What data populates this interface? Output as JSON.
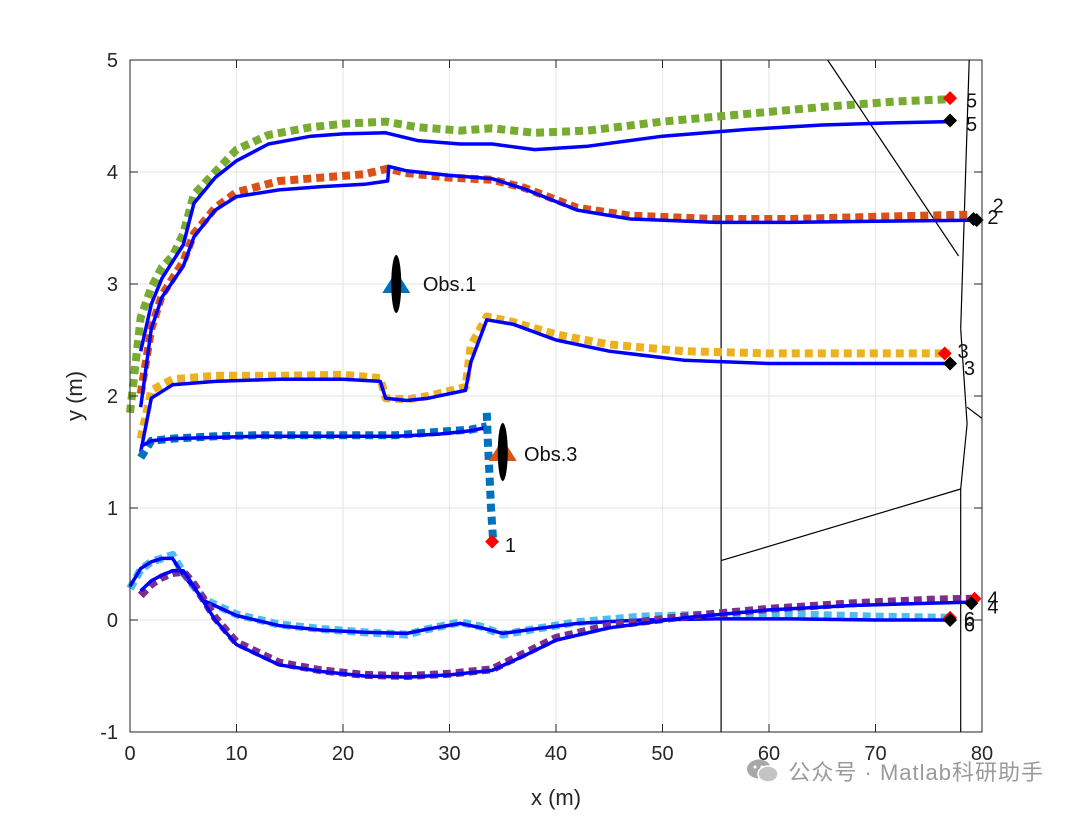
{
  "chart_data": {
    "type": "line",
    "xlabel": "x (m)",
    "ylabel": "y (m)",
    "xlim": [
      0,
      80
    ],
    "ylim": [
      -1,
      5
    ],
    "xticks": [
      0,
      10,
      20,
      30,
      40,
      50,
      60,
      70,
      80
    ],
    "yticks": [
      -1,
      0,
      1,
      2,
      3,
      4,
      5
    ],
    "grid": true,
    "colors": {
      "green": "#77ac30",
      "orange": "#d95319",
      "yellow": "#edb120",
      "blue": "#0072bd",
      "lightblue": "#4dbeee",
      "purple": "#7e2f8e",
      "solid": "#0000ff",
      "red": "#ff0000",
      "black": "#000000"
    },
    "series": [
      {
        "color": "green",
        "style": "dotted",
        "x": [
          0,
          1,
          2,
          3,
          4,
          5,
          6,
          8,
          10,
          13,
          17,
          20,
          24,
          27,
          31,
          34,
          38,
          43,
          50,
          58,
          65,
          72,
          77
        ],
        "y": [
          1.85,
          2.7,
          2.97,
          3.15,
          3.25,
          3.45,
          3.8,
          4.0,
          4.2,
          4.33,
          4.4,
          4.43,
          4.45,
          4.4,
          4.37,
          4.39,
          4.35,
          4.37,
          4.45,
          4.52,
          4.58,
          4.63,
          4.65
        ]
      },
      {
        "color": "solid",
        "style": "solid",
        "x": [
          1,
          2,
          3,
          4,
          5,
          6,
          8,
          10,
          13,
          17,
          20,
          24,
          27,
          31,
          34,
          38,
          43,
          50,
          58,
          65,
          72,
          77
        ],
        "y": [
          2.4,
          2.82,
          3.05,
          3.2,
          3.35,
          3.72,
          3.95,
          4.1,
          4.25,
          4.32,
          4.34,
          4.35,
          4.28,
          4.25,
          4.25,
          4.2,
          4.23,
          4.32,
          4.38,
          4.42,
          4.44,
          4.45
        ]
      },
      {
        "color": "orange",
        "style": "dotted",
        "x": [
          1,
          2,
          3,
          4,
          5,
          6,
          8,
          10,
          14,
          18,
          22,
          24.2,
          26,
          30,
          34,
          37,
          42,
          47,
          55,
          62,
          70,
          79
        ],
        "y": [
          2.02,
          2.6,
          2.9,
          3.05,
          3.2,
          3.45,
          3.68,
          3.82,
          3.92,
          3.95,
          3.98,
          4.03,
          3.99,
          3.95,
          3.93,
          3.86,
          3.68,
          3.61,
          3.58,
          3.58,
          3.6,
          3.62
        ]
      },
      {
        "color": "solid",
        "style": "solid",
        "x": [
          1,
          2,
          3,
          4,
          5,
          6,
          8,
          10,
          14,
          18,
          22,
          24.2,
          24.3,
          26,
          30,
          34,
          37,
          42,
          47,
          55,
          62,
          70,
          79
        ],
        "y": [
          1.9,
          2.6,
          2.88,
          3.02,
          3.16,
          3.42,
          3.66,
          3.78,
          3.84,
          3.87,
          3.89,
          3.92,
          4.05,
          4.01,
          3.97,
          3.94,
          3.85,
          3.66,
          3.58,
          3.55,
          3.55,
          3.56,
          3.57
        ]
      },
      {
        "color": "yellow",
        "style": "dotted",
        "x": [
          1,
          2,
          4,
          8,
          14,
          20,
          23.5,
          24,
          26,
          28,
          31.5,
          32,
          33.5,
          36,
          40,
          45,
          52,
          60,
          68,
          77
        ],
        "y": [
          1.62,
          2.05,
          2.15,
          2.18,
          2.18,
          2.19,
          2.16,
          1.98,
          1.97,
          2.0,
          2.08,
          2.45,
          2.71,
          2.66,
          2.55,
          2.46,
          2.4,
          2.38,
          2.38,
          2.38
        ]
      },
      {
        "color": "solid",
        "style": "solid",
        "x": [
          1,
          2,
          4,
          8,
          14,
          20,
          23.5,
          24,
          26,
          28,
          31.5,
          32,
          33.5,
          36,
          40,
          45,
          52,
          60,
          68,
          77
        ],
        "y": [
          1.5,
          1.98,
          2.1,
          2.13,
          2.15,
          2.15,
          2.13,
          1.98,
          1.96,
          1.98,
          2.05,
          2.3,
          2.68,
          2.64,
          2.5,
          2.4,
          2.32,
          2.29,
          2.29,
          2.29
        ]
      },
      {
        "color": "blue",
        "style": "dotted",
        "x": [
          1,
          2,
          4,
          8,
          12,
          16,
          20,
          25,
          29,
          32,
          33.5
        ],
        "y": [
          1.45,
          1.6,
          1.62,
          1.64,
          1.65,
          1.65,
          1.65,
          1.65,
          1.68,
          1.7,
          1.73
        ]
      },
      {
        "color": "solid",
        "style": "solid",
        "x": [
          1,
          2,
          4,
          8,
          12,
          16,
          20,
          25,
          29,
          32,
          33.5
        ],
        "y": [
          1.55,
          1.6,
          1.62,
          1.63,
          1.64,
          1.64,
          1.64,
          1.64,
          1.66,
          1.69,
          1.72
        ]
      },
      {
        "color": "blue",
        "style": "dotted",
        "x": [
          33.5,
          33.6,
          33.7,
          33.8,
          33.9,
          34,
          34.1
        ],
        "y": [
          1.85,
          1.6,
          1.4,
          1.2,
          1.0,
          0.85,
          0.7
        ]
      },
      {
        "color": "lightblue",
        "style": "dotted",
        "x": [
          0,
          1,
          2,
          3,
          4,
          5,
          7,
          10,
          14,
          18,
          22,
          26,
          28,
          31,
          33,
          35,
          38,
          42,
          48,
          55,
          62,
          70,
          77
        ],
        "y": [
          0.28,
          0.45,
          0.52,
          0.55,
          0.58,
          0.42,
          0.18,
          0.05,
          -0.04,
          -0.08,
          -0.11,
          -0.13,
          -0.08,
          -0.02,
          -0.06,
          -0.13,
          -0.08,
          -0.02,
          0.03,
          0.05,
          0.05,
          0.03,
          0.02
        ]
      },
      {
        "color": "solid",
        "style": "solid",
        "x": [
          0,
          1,
          2,
          3,
          4,
          5,
          7,
          10,
          14,
          18,
          22,
          26,
          28,
          31,
          33,
          35,
          38,
          42,
          48,
          55,
          62,
          70,
          77
        ],
        "y": [
          0.3,
          0.46,
          0.52,
          0.55,
          0.55,
          0.4,
          0.17,
          0.04,
          -0.05,
          -0.09,
          -0.11,
          -0.12,
          -0.08,
          -0.03,
          -0.07,
          -0.12,
          -0.08,
          -0.03,
          0.0,
          0.01,
          0.01,
          0.0,
          0.0
        ]
      },
      {
        "color": "purple",
        "style": "dotted",
        "x": [
          1,
          2,
          3,
          4,
          5,
          6,
          8,
          10,
          14,
          18,
          22,
          26,
          30,
          34,
          37,
          40,
          45,
          52,
          60,
          68,
          75,
          79
        ],
        "y": [
          0.22,
          0.32,
          0.38,
          0.42,
          0.43,
          0.32,
          0.02,
          -0.2,
          -0.38,
          -0.45,
          -0.49,
          -0.5,
          -0.48,
          -0.44,
          -0.3,
          -0.16,
          -0.05,
          0.03,
          0.1,
          0.15,
          0.18,
          0.19
        ]
      },
      {
        "color": "solid",
        "style": "solid",
        "x": [
          1,
          2,
          3,
          4,
          5,
          6,
          8,
          10,
          14,
          18,
          22,
          26,
          30,
          34,
          37,
          40,
          45,
          52,
          60,
          68,
          75,
          79
        ],
        "y": [
          0.26,
          0.35,
          0.4,
          0.44,
          0.44,
          0.3,
          0.0,
          -0.22,
          -0.4,
          -0.46,
          -0.5,
          -0.51,
          -0.49,
          -0.45,
          -0.32,
          -0.18,
          -0.07,
          0.02,
          0.09,
          0.13,
          0.15,
          0.16
        ]
      }
    ],
    "boundary_lines": [
      {
        "x": [
          55.5,
          55.5
        ],
        "y": [
          5,
          -1
        ]
      },
      {
        "x": [
          55.5,
          78
        ],
        "y": [
          0.53,
          1.17
        ]
      },
      {
        "x": [
          78,
          78
        ],
        "y": [
          1.17,
          -1
        ]
      },
      {
        "x": [
          78,
          78.6
        ],
        "y": [
          1.17,
          1.75
        ]
      },
      {
        "x": [
          78.6,
          78
        ],
        "y": [
          1.75,
          2.6
        ]
      },
      {
        "x": [
          78,
          78.8
        ],
        "y": [
          2.6,
          5
        ]
      },
      {
        "x": [
          78.6,
          80
        ],
        "y": [
          1.9,
          1.8
        ]
      },
      {
        "x": [
          65.5,
          77.8
        ],
        "y": [
          5,
          3.25
        ]
      }
    ],
    "end_markers": [
      {
        "x": 77,
        "y": 4.66,
        "color": "red",
        "label": "5",
        "lx": 78.5,
        "ly": 4.64
      },
      {
        "x": 77,
        "y": 4.46,
        "color": "black",
        "label": "5",
        "lx": 78.5,
        "ly": 4.43
      },
      {
        "x": 79.5,
        "y": 3.57,
        "color": "black",
        "label": "2",
        "lx": 80.5,
        "ly": 3.6
      },
      {
        "x": 79.2,
        "y": 3.58,
        "color": "black",
        "label": "2",
        "lx": 81,
        "ly": 3.7
      },
      {
        "x": 76.5,
        "y": 2.38,
        "color": "red",
        "label": "3",
        "lx": 77.7,
        "ly": 2.4
      },
      {
        "x": 77,
        "y": 2.29,
        "color": "black",
        "label": "3",
        "lx": 78.3,
        "ly": 2.25
      },
      {
        "x": 34,
        "y": 0.7,
        "color": "red",
        "label": "1",
        "lx": 35.2,
        "ly": 0.67
      },
      {
        "x": 79.3,
        "y": 0.19,
        "color": "red",
        "label": "4",
        "lx": 80.5,
        "ly": 0.19
      },
      {
        "x": 79,
        "y": 0.15,
        "color": "black",
        "label": "4",
        "lx": 80.5,
        "ly": 0.12
      },
      {
        "x": 77,
        "y": 0.02,
        "color": "red",
        "label": "6",
        "lx": 78.3,
        "ly": 0.01
      },
      {
        "x": 77,
        "y": 0.0,
        "color": "black",
        "label": "6",
        "lx": 78.3,
        "ly": -0.04
      }
    ],
    "obstacles": [
      {
        "label": "Obs.1",
        "x": 25,
        "y": 3.0,
        "triangle_color": "#0072bd",
        "tx": 27.5,
        "ty": 3.0
      },
      {
        "label": "Obs.3",
        "x": 35,
        "y": 1.5,
        "triangle_color": "#d95319",
        "tx": 37,
        "ty": 1.48
      }
    ]
  },
  "watermark": {
    "text": "公众号 · Matlab科研助手"
  }
}
